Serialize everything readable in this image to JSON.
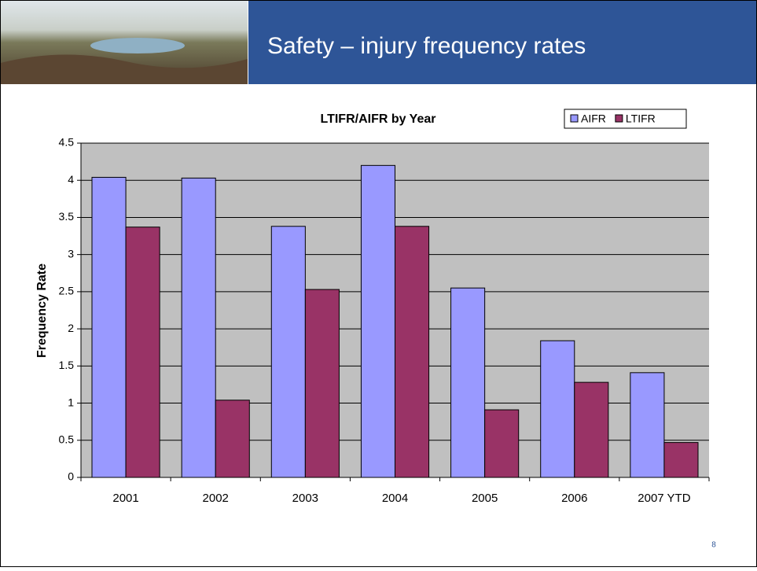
{
  "slide": {
    "title": "Safety – injury frequency rates",
    "page_number": "8"
  },
  "chart_data": {
    "type": "bar",
    "title": "LTIFR/AIFR by Year",
    "y_label": "Frequency Rate",
    "categories": [
      "2001",
      "2002",
      "2003",
      "2004",
      "2005",
      "2006",
      "2007 YTD"
    ],
    "series": [
      {
        "name": "AIFR",
        "color": "#9999ff",
        "values": [
          4.04,
          4.03,
          3.38,
          4.2,
          2.55,
          1.84,
          1.41
        ]
      },
      {
        "name": "LTIFR",
        "color": "#993366",
        "values": [
          3.37,
          1.04,
          2.53,
          3.38,
          0.91,
          1.28,
          0.47
        ]
      }
    ],
    "ylim": [
      0,
      4.5
    ],
    "yticks": [
      0,
      0.5,
      1,
      1.5,
      2,
      2.5,
      3,
      3.5,
      4,
      4.5
    ],
    "grid": true,
    "plot_background": "#c0c0c0",
    "legend": "top-right"
  }
}
